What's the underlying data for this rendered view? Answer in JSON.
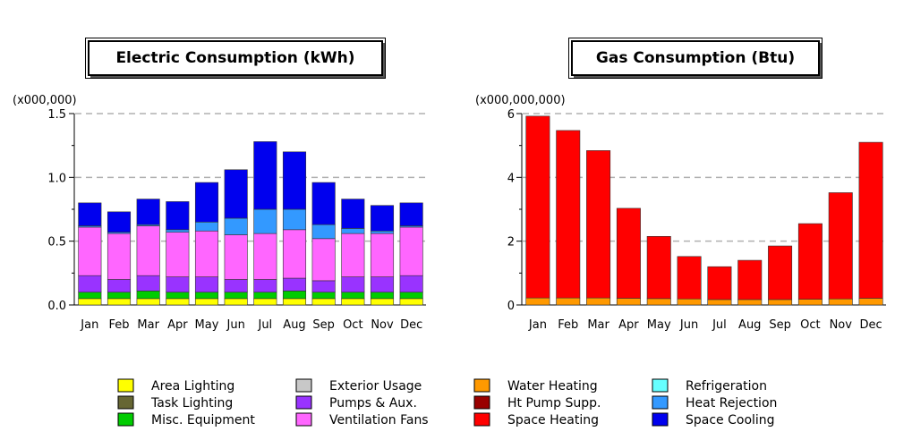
{
  "chart_data": [
    {
      "type": "bar",
      "stacked": true,
      "title": "Electric Consumption (kWh)",
      "ylabel": "(x000,000)",
      "ylim": [
        0,
        1.5
      ],
      "yticks": [
        "0.0",
        "0.5",
        "1.0",
        "1.5"
      ],
      "ytick_values": [
        0,
        0.5,
        1.0,
        1.5
      ],
      "grid": true,
      "categories": [
        "Jan",
        "Feb",
        "Mar",
        "Apr",
        "May",
        "Jun",
        "Jul",
        "Aug",
        "Sep",
        "Oct",
        "Nov",
        "Dec"
      ],
      "series": [
        {
          "name": "Area Lighting",
          "color": "#ffff00",
          "values": [
            0.05,
            0.05,
            0.05,
            0.05,
            0.05,
            0.05,
            0.05,
            0.05,
            0.05,
            0.05,
            0.05,
            0.05
          ]
        },
        {
          "name": "Task Lighting",
          "color": "#666633",
          "values": [
            0,
            0,
            0,
            0,
            0,
            0,
            0,
            0,
            0,
            0,
            0,
            0
          ]
        },
        {
          "name": "Misc. Equipment",
          "color": "#00cc00",
          "values": [
            0.05,
            0.05,
            0.06,
            0.05,
            0.05,
            0.05,
            0.05,
            0.06,
            0.05,
            0.05,
            0.05,
            0.05
          ]
        },
        {
          "name": "Exterior Usage",
          "color": "#c8c8c8",
          "values": [
            0,
            0,
            0,
            0,
            0,
            0,
            0,
            0,
            0,
            0,
            0,
            0
          ]
        },
        {
          "name": "Pumps & Aux.",
          "color": "#9933ff",
          "values": [
            0.13,
            0.1,
            0.12,
            0.12,
            0.12,
            0.1,
            0.1,
            0.1,
            0.09,
            0.12,
            0.12,
            0.13
          ]
        },
        {
          "name": "Ventilation Fans",
          "color": "#ff66ff",
          "values": [
            0.38,
            0.36,
            0.39,
            0.35,
            0.36,
            0.35,
            0.36,
            0.38,
            0.33,
            0.34,
            0.34,
            0.38
          ]
        },
        {
          "name": "Water Heating",
          "color": "#ff9900",
          "values": [
            0,
            0,
            0,
            0,
            0,
            0,
            0,
            0,
            0,
            0,
            0,
            0
          ]
        },
        {
          "name": "Ht Pump Supp.",
          "color": "#990000",
          "values": [
            0,
            0,
            0,
            0,
            0,
            0,
            0,
            0,
            0,
            0,
            0,
            0
          ]
        },
        {
          "name": "Space Heating",
          "color": "#ff0000",
          "values": [
            0,
            0,
            0,
            0,
            0,
            0,
            0,
            0,
            0,
            0,
            0,
            0
          ]
        },
        {
          "name": "Refrigeration",
          "color": "#66ffff",
          "values": [
            0,
            0,
            0,
            0,
            0,
            0,
            0,
            0,
            0,
            0,
            0,
            0
          ]
        },
        {
          "name": "Heat Rejection",
          "color": "#3399ff",
          "values": [
            0.01,
            0.01,
            0.01,
            0.02,
            0.07,
            0.13,
            0.19,
            0.16,
            0.11,
            0.04,
            0.02,
            0.01
          ]
        },
        {
          "name": "Space Cooling",
          "color": "#0000ee",
          "values": [
            0.18,
            0.16,
            0.2,
            0.22,
            0.31,
            0.38,
            0.53,
            0.45,
            0.33,
            0.23,
            0.2,
            0.18
          ]
        }
      ]
    },
    {
      "type": "bar",
      "stacked": true,
      "title": "Gas Consumption (Btu)",
      "ylabel": "(x000,000,000)",
      "ylim": [
        0,
        6
      ],
      "yticks": [
        "0",
        "2",
        "4",
        "6"
      ],
      "ytick_values": [
        0,
        2,
        4,
        6
      ],
      "grid": true,
      "categories": [
        "Jan",
        "Feb",
        "Mar",
        "Apr",
        "May",
        "Jun",
        "Jul",
        "Aug",
        "Sep",
        "Oct",
        "Nov",
        "Dec"
      ],
      "series": [
        {
          "name": "Water Heating",
          "color": "#ff9900",
          "values": [
            0.22,
            0.22,
            0.22,
            0.21,
            0.2,
            0.19,
            0.17,
            0.17,
            0.17,
            0.18,
            0.19,
            0.21
          ]
        },
        {
          "name": "Space Heating",
          "color": "#ff0000",
          "values": [
            5.7,
            5.25,
            4.62,
            2.82,
            1.95,
            1.33,
            1.03,
            1.23,
            1.68,
            2.37,
            3.33,
            4.89
          ]
        }
      ]
    }
  ],
  "legend": [
    {
      "label": "Area Lighting",
      "color": "#ffff00"
    },
    {
      "label": "Task Lighting",
      "color": "#666633"
    },
    {
      "label": "Misc. Equipment",
      "color": "#00cc00"
    },
    {
      "label": "Exterior Usage",
      "color": "#c8c8c8"
    },
    {
      "label": "Pumps & Aux.",
      "color": "#9933ff"
    },
    {
      "label": "Ventilation Fans",
      "color": "#ff66ff"
    },
    {
      "label": "Water Heating",
      "color": "#ff9900"
    },
    {
      "label": "Ht Pump Supp.",
      "color": "#990000"
    },
    {
      "label": "Space Heating",
      "color": "#ff0000"
    },
    {
      "label": "Refrigeration",
      "color": "#66ffff"
    },
    {
      "label": "Heat Rejection",
      "color": "#3399ff"
    },
    {
      "label": "Space Cooling",
      "color": "#0000ee"
    }
  ]
}
